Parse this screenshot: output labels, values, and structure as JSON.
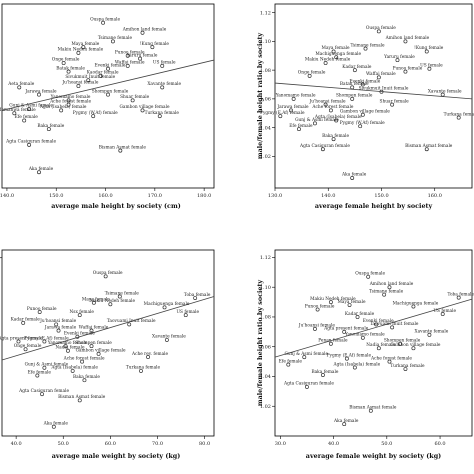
{
  "chart_data": [
    {
      "type": "scatter",
      "xlabel": "average male height by society (cm)",
      "ylabel": "",
      "xlim": [
        139,
        182
      ],
      "ylim": [
        0.992,
        1.12
      ],
      "xticks": [
        "140.0",
        "150.0",
        "160.0",
        "170.0",
        "180.0"
      ],
      "xtick_values": [
        140,
        150,
        160,
        170,
        180
      ],
      "yticks": [],
      "ytick_values": [],
      "fit_line": {
        "x": [
          139,
          182
        ],
        "y": [
          1.046,
          1.081
        ]
      },
      "points": [
        {
          "x": 159.5,
          "y": 1.107,
          "label": "Ouspa female"
        },
        {
          "x": 167.5,
          "y": 1.1,
          "label": "Amihon land female"
        },
        {
          "x": 161.5,
          "y": 1.094,
          "label": "Tsimane female"
        },
        {
          "x": 155.5,
          "y": 1.09,
          "label": "Maya female"
        },
        {
          "x": 169.5,
          "y": 1.09,
          "label": "!Kung female"
        },
        {
          "x": 154.5,
          "y": 1.086,
          "label": "Makiu Nedeh female"
        },
        {
          "x": 164.5,
          "y": 1.084,
          "label": "Punoo female"
        },
        {
          "x": 167,
          "y": 1.082,
          "label": "Yaruru female"
        },
        {
          "x": 151.5,
          "y": 1.079,
          "label": "Onge female"
        },
        {
          "x": 164.5,
          "y": 1.077,
          "label": "Waffai female"
        },
        {
          "x": 171.5,
          "y": 1.077,
          "label": "US female"
        },
        {
          "x": 160.5,
          "y": 1.075,
          "label": "Evenki female"
        },
        {
          "x": 152.5,
          "y": 1.073,
          "label": "Batak female"
        },
        {
          "x": 159,
          "y": 1.07,
          "label": "Kaodar female"
        },
        {
          "x": 156.5,
          "y": 1.067,
          "label": "Sivukmuit Inuit female"
        },
        {
          "x": 142.5,
          "y": 1.062,
          "label": "Aeta female"
        },
        {
          "x": 154.5,
          "y": 1.063,
          "label": "Ju'hoansi female"
        },
        {
          "x": 171.5,
          "y": 1.062,
          "label": "Xavante female"
        },
        {
          "x": 146.5,
          "y": 1.057,
          "label": "Jarawa female"
        },
        {
          "x": 160.5,
          "y": 1.057,
          "label": "Shompen female"
        },
        {
          "x": 152.5,
          "y": 1.053,
          "label": "Yanomamo female"
        },
        {
          "x": 165.5,
          "y": 1.053,
          "label": "Shuar female"
        },
        {
          "x": 152.5,
          "y": 1.05,
          "label": "Ache forest female"
        },
        {
          "x": 144.5,
          "y": 1.047,
          "label": "Gunj & Asmi female"
        },
        {
          "x": 151,
          "y": 1.046,
          "label": "Agta (Isabela) female"
        },
        {
          "x": 167.5,
          "y": 1.046,
          "label": "Gambon village female"
        },
        {
          "x": 141.5,
          "y": 1.044,
          "label": "Mamanwa female"
        },
        {
          "x": 157.5,
          "y": 1.042,
          "label": "Pygmy (W.Af) female"
        },
        {
          "x": 171,
          "y": 1.042,
          "label": "Turkana female"
        },
        {
          "x": 143.5,
          "y": 1.039,
          "label": "Efe female"
        },
        {
          "x": 148.5,
          "y": 1.033,
          "label": "Baka female"
        },
        {
          "x": 144.5,
          "y": 1.022,
          "label": "Agta Casiguran female"
        },
        {
          "x": 163,
          "y": 1.018,
          "label": "Bisman Asmat female"
        },
        {
          "x": 146.5,
          "y": 1.003,
          "label": "Aka female"
        }
      ]
    },
    {
      "type": "scatter",
      "xlabel": "average female height by society",
      "ylabel": "male/female height ratio by society",
      "xlim": [
        130,
        167
      ],
      "ylim": [
        0.998,
        1.126
      ],
      "xticks": [
        "130.0",
        "140.0",
        "150.0",
        "160.0"
      ],
      "xtick_values": [
        130,
        140,
        150,
        160
      ],
      "yticks": [
        "1.02",
        "1.04",
        "1.06",
        "1.08",
        "1.10",
        "1.12"
      ],
      "ytick_values": [
        1.02,
        1.04,
        1.06,
        1.08,
        1.1,
        1.12
      ],
      "fit_line": {
        "x": [
          130,
          167
        ],
        "y": [
          1.071,
          1.06
        ]
      },
      "points": [
        {
          "x": 149.5,
          "y": 1.107,
          "label": "Ouspa female"
        },
        {
          "x": 154.5,
          "y": 1.1,
          "label": "Amihon land female"
        },
        {
          "x": 147,
          "y": 1.095,
          "label": "Tsimane female"
        },
        {
          "x": 141,
          "y": 1.093,
          "label": "Maya female"
        },
        {
          "x": 158.5,
          "y": 1.093,
          "label": "!Kung female"
        },
        {
          "x": 141.5,
          "y": 1.089,
          "label": "Machiguenga female"
        },
        {
          "x": 153,
          "y": 1.087,
          "label": "Yaruru female"
        },
        {
          "x": 139.5,
          "y": 1.085,
          "label": "Makiu Nedeh female"
        },
        {
          "x": 159,
          "y": 1.081,
          "label": "US female"
        },
        {
          "x": 145,
          "y": 1.08,
          "label": "Kadar female"
        },
        {
          "x": 154.5,
          "y": 1.079,
          "label": "Punoo female"
        },
        {
          "x": 136.5,
          "y": 1.076,
          "label": "Onge female"
        },
        {
          "x": 149.5,
          "y": 1.075,
          "label": "Waffai female"
        },
        {
          "x": 146.5,
          "y": 1.07,
          "label": "Evenki female"
        },
        {
          "x": 144.5,
          "y": 1.068,
          "label": "Batak female"
        },
        {
          "x": 150,
          "y": 1.065,
          "label": "Sivukmuit Inuit female"
        },
        {
          "x": 161.5,
          "y": 1.063,
          "label": "Xavante female"
        },
        {
          "x": 133.5,
          "y": 1.06,
          "label": "Yanomamo female"
        },
        {
          "x": 144.5,
          "y": 1.06,
          "label": "Shompen female"
        },
        {
          "x": 139.5,
          "y": 1.056,
          "label": "Ju'hoansi female"
        },
        {
          "x": 152,
          "y": 1.056,
          "label": "Shuar female"
        },
        {
          "x": 133,
          "y": 1.052,
          "label": "Jarawa female"
        },
        {
          "x": 140.5,
          "y": 1.052,
          "label": "Ache forest female"
        },
        {
          "x": 131,
          "y": 1.048,
          "label": "Pygmy (E.Af) female"
        },
        {
          "x": 146.5,
          "y": 1.049,
          "label": "Gambon village female"
        },
        {
          "x": 164.5,
          "y": 1.047,
          "label": "Turkana female"
        },
        {
          "x": 141.5,
          "y": 1.045,
          "label": "Agta (Isabela) female"
        },
        {
          "x": 137.5,
          "y": 1.043,
          "label": "Gunj & Asmi female"
        },
        {
          "x": 146,
          "y": 1.041,
          "label": "Pygmy (W.Af) female"
        },
        {
          "x": 134.5,
          "y": 1.039,
          "label": "Efe female"
        },
        {
          "x": 141,
          "y": 1.032,
          "label": "Baka female"
        },
        {
          "x": 139,
          "y": 1.025,
          "label": "Agta Casiguran female"
        },
        {
          "x": 158.5,
          "y": 1.025,
          "label": "Bisman Asmat female"
        },
        {
          "x": 144.5,
          "y": 1.005,
          "label": "Aka female"
        }
      ]
    },
    {
      "type": "scatter",
      "xlabel": "average male weight by society (kg)",
      "ylabel": "",
      "xlim": [
        37,
        82
      ],
      "ylim": [
        1.005,
        1.125
      ],
      "xticks": [
        "40.0",
        "50.0",
        "60.0",
        "70.0",
        "80.0"
      ],
      "xtick_values": [
        40,
        50,
        60,
        70,
        80
      ],
      "yticks": [
        "1.12"
      ],
      "ytick_values": [
        1.12
      ],
      "fit_line": {
        "x": [
          37,
          82
        ],
        "y": [
          1.054,
          1.095
        ]
      },
      "points": [
        {
          "x": 59,
          "y": 1.108,
          "label": "Ouspa female"
        },
        {
          "x": 62,
          "y": 1.095,
          "label": "Tsimane female"
        },
        {
          "x": 78,
          "y": 1.094,
          "label": "Toba female"
        },
        {
          "x": 56.5,
          "y": 1.091,
          "label": "Maya female"
        },
        {
          "x": 60,
          "y": 1.09,
          "label": "Makiu Nedeh female"
        },
        {
          "x": 71.5,
          "y": 1.088,
          "label": "Machiguenga female"
        },
        {
          "x": 45,
          "y": 1.085,
          "label": "Punoo female"
        },
        {
          "x": 76,
          "y": 1.083,
          "label": "US female"
        },
        {
          "x": 53.5,
          "y": 1.083,
          "label": "Nsx female"
        },
        {
          "x": 41.5,
          "y": 1.078,
          "label": "Kadar female"
        },
        {
          "x": 64,
          "y": 1.077,
          "label": "Taovuami Inuit female"
        },
        {
          "x": 48.5,
          "y": 1.077,
          "label": "Ju'hoansi female"
        },
        {
          "x": 49,
          "y": 1.073,
          "label": "Jarawa female"
        },
        {
          "x": 56,
          "y": 1.073,
          "label": "Waffai female"
        },
        {
          "x": 53,
          "y": 1.069,
          "label": "Evenki female"
        },
        {
          "x": 72,
          "y": 1.067,
          "label": "Xavante female"
        },
        {
          "x": 40.5,
          "y": 1.066,
          "label": "Agta present female"
        },
        {
          "x": 46,
          "y": 1.066,
          "label": "Pygmy (E.Af) female"
        },
        {
          "x": 50.5,
          "y": 1.063,
          "label": "Yanomamo female"
        },
        {
          "x": 56,
          "y": 1.063,
          "label": "Shompen female"
        },
        {
          "x": 42,
          "y": 1.061,
          "label": "Onge female"
        },
        {
          "x": 51,
          "y": 1.06,
          "label": "Nadia female"
        },
        {
          "x": 57.5,
          "y": 1.058,
          "label": "Gambon village female"
        },
        {
          "x": 68,
          "y": 1.056,
          "label": "Ache rev. female"
        },
        {
          "x": 54,
          "y": 1.053,
          "label": "Ache forest female"
        },
        {
          "x": 46,
          "y": 1.049,
          "label": "Gunj & Asmi female"
        },
        {
          "x": 52,
          "y": 1.047,
          "label": "Agta (Isabela) female"
        },
        {
          "x": 66.5,
          "y": 1.047,
          "label": "Turkana female"
        },
        {
          "x": 44.5,
          "y": 1.044,
          "label": "Efe female"
        },
        {
          "x": 54.5,
          "y": 1.041,
          "label": "Baka female"
        },
        {
          "x": 45.5,
          "y": 1.032,
          "label": "Agta Casiguran female"
        },
        {
          "x": 53.5,
          "y": 1.028,
          "label": "Bisman Asmat female"
        },
        {
          "x": 48,
          "y": 1.011,
          "label": "Aka female"
        }
      ]
    },
    {
      "type": "scatter",
      "xlabel": "average female weight by society (kg)",
      "ylabel": "male/female height ratio by society",
      "xlim": [
        29,
        66
      ],
      "ylim": [
        1.0,
        1.125
      ],
      "xticks": [
        "30.0",
        "40.0",
        "50.0",
        "60.0"
      ],
      "xtick_values": [
        30,
        40,
        50,
        60
      ],
      "yticks": [
        "1.02",
        "1.04",
        "1.06",
        "1.08",
        "1.10",
        "1.12"
      ],
      "ytick_values": [
        1.02,
        1.04,
        1.06,
        1.08,
        1.1,
        1.12
      ],
      "fit_line": {
        "x": [
          29,
          66
        ],
        "y": [
          1.053,
          1.092
        ]
      },
      "points": [
        {
          "x": 46.5,
          "y": 1.107,
          "label": "Ouspa female"
        },
        {
          "x": 50.5,
          "y": 1.1,
          "label": "Amihon land female"
        },
        {
          "x": 49.5,
          "y": 1.095,
          "label": "Tsimane female"
        },
        {
          "x": 63.5,
          "y": 1.093,
          "label": "Toba female"
        },
        {
          "x": 39.5,
          "y": 1.09,
          "label": "Makiu Nedeh female"
        },
        {
          "x": 43,
          "y": 1.088,
          "label": "Maya female"
        },
        {
          "x": 55,
          "y": 1.087,
          "label": "Machiguenga female"
        },
        {
          "x": 37,
          "y": 1.085,
          "label": "Punoo female"
        },
        {
          "x": 60.5,
          "y": 1.082,
          "label": "US female"
        },
        {
          "x": 44.5,
          "y": 1.08,
          "label": "Kadar female"
        },
        {
          "x": 48,
          "y": 1.075,
          "label": "Evenki female"
        },
        {
          "x": 51,
          "y": 1.073,
          "label": "Taovuami Inuit female"
        },
        {
          "x": 36.5,
          "y": 1.072,
          "label": "Ju'hoansi female"
        },
        {
          "x": 42,
          "y": 1.07,
          "label": "Agta present female"
        },
        {
          "x": 58,
          "y": 1.068,
          "label": "Xavante female"
        },
        {
          "x": 45.5,
          "y": 1.066,
          "label": "Yanomamo female"
        },
        {
          "x": 39.5,
          "y": 1.062,
          "label": "Penan female"
        },
        {
          "x": 52.5,
          "y": 1.062,
          "label": "Shompen female"
        },
        {
          "x": 48.5,
          "y": 1.059,
          "label": "Nadia female"
        },
        {
          "x": 55,
          "y": 1.059,
          "label": "Gambon village female"
        },
        {
          "x": 34.5,
          "y": 1.053,
          "label": "Gunj & Asmi female"
        },
        {
          "x": 42.5,
          "y": 1.052,
          "label": "Pygmy (E.Af) female"
        },
        {
          "x": 50.5,
          "y": 1.05,
          "label": "Ache forest female"
        },
        {
          "x": 31.5,
          "y": 1.048,
          "label": "Efe female"
        },
        {
          "x": 44,
          "y": 1.046,
          "label": "Agta (Isabela) female"
        },
        {
          "x": 53.5,
          "y": 1.045,
          "label": "Turkana female"
        },
        {
          "x": 38,
          "y": 1.041,
          "label": "Baka female"
        },
        {
          "x": 35,
          "y": 1.033,
          "label": "Agta Casiguran female"
        },
        {
          "x": 47,
          "y": 1.017,
          "label": "Bisman Asmat female"
        },
        {
          "x": 42,
          "y": 1.008,
          "label": "Aka female"
        }
      ]
    }
  ]
}
